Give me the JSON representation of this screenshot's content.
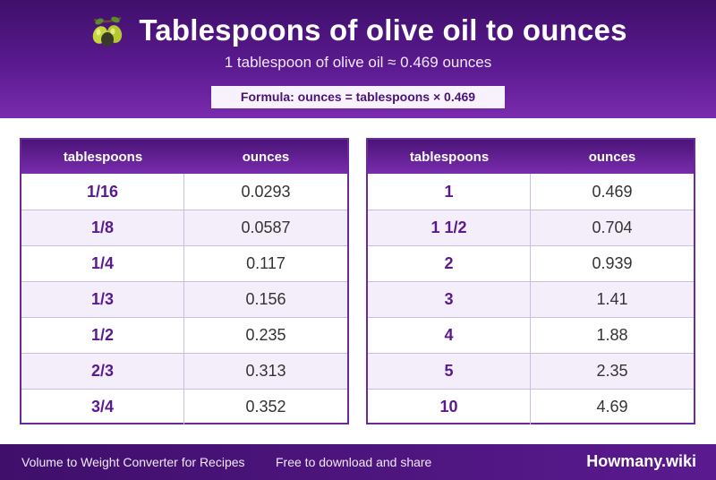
{
  "header": {
    "title": "Tablespoons of olive oil to ounces",
    "subtitle": "1 tablespoon of olive oil ≈ 0.469 ounces",
    "formula": "Formula: ounces = tablespoons × 0.469",
    "icon": "olive-icon"
  },
  "tables": [
    {
      "headers": [
        "tablespoons",
        "ounces"
      ],
      "rows": [
        [
          "1/16",
          "0.0293"
        ],
        [
          "1/8",
          "0.0587"
        ],
        [
          "1/4",
          "0.117"
        ],
        [
          "1/3",
          "0.156"
        ],
        [
          "1/2",
          "0.235"
        ],
        [
          "2/3",
          "0.313"
        ],
        [
          "3/4",
          "0.352"
        ]
      ]
    },
    {
      "headers": [
        "tablespoons",
        "ounces"
      ],
      "rows": [
        [
          "1",
          "0.469"
        ],
        [
          "1 1/2",
          "0.704"
        ],
        [
          "2",
          "0.939"
        ],
        [
          "3",
          "1.41"
        ],
        [
          "4",
          "1.88"
        ],
        [
          "5",
          "2.35"
        ],
        [
          "10",
          "4.69"
        ]
      ]
    }
  ],
  "footer": {
    "left": "Volume to Weight Converter for Recipes",
    "middle": "Free to download and share",
    "brand": "Howmany.wiki"
  },
  "colors": {
    "primary": "#5a1a8f",
    "dark": "#3f0f6b",
    "light": "#f4eefa"
  }
}
